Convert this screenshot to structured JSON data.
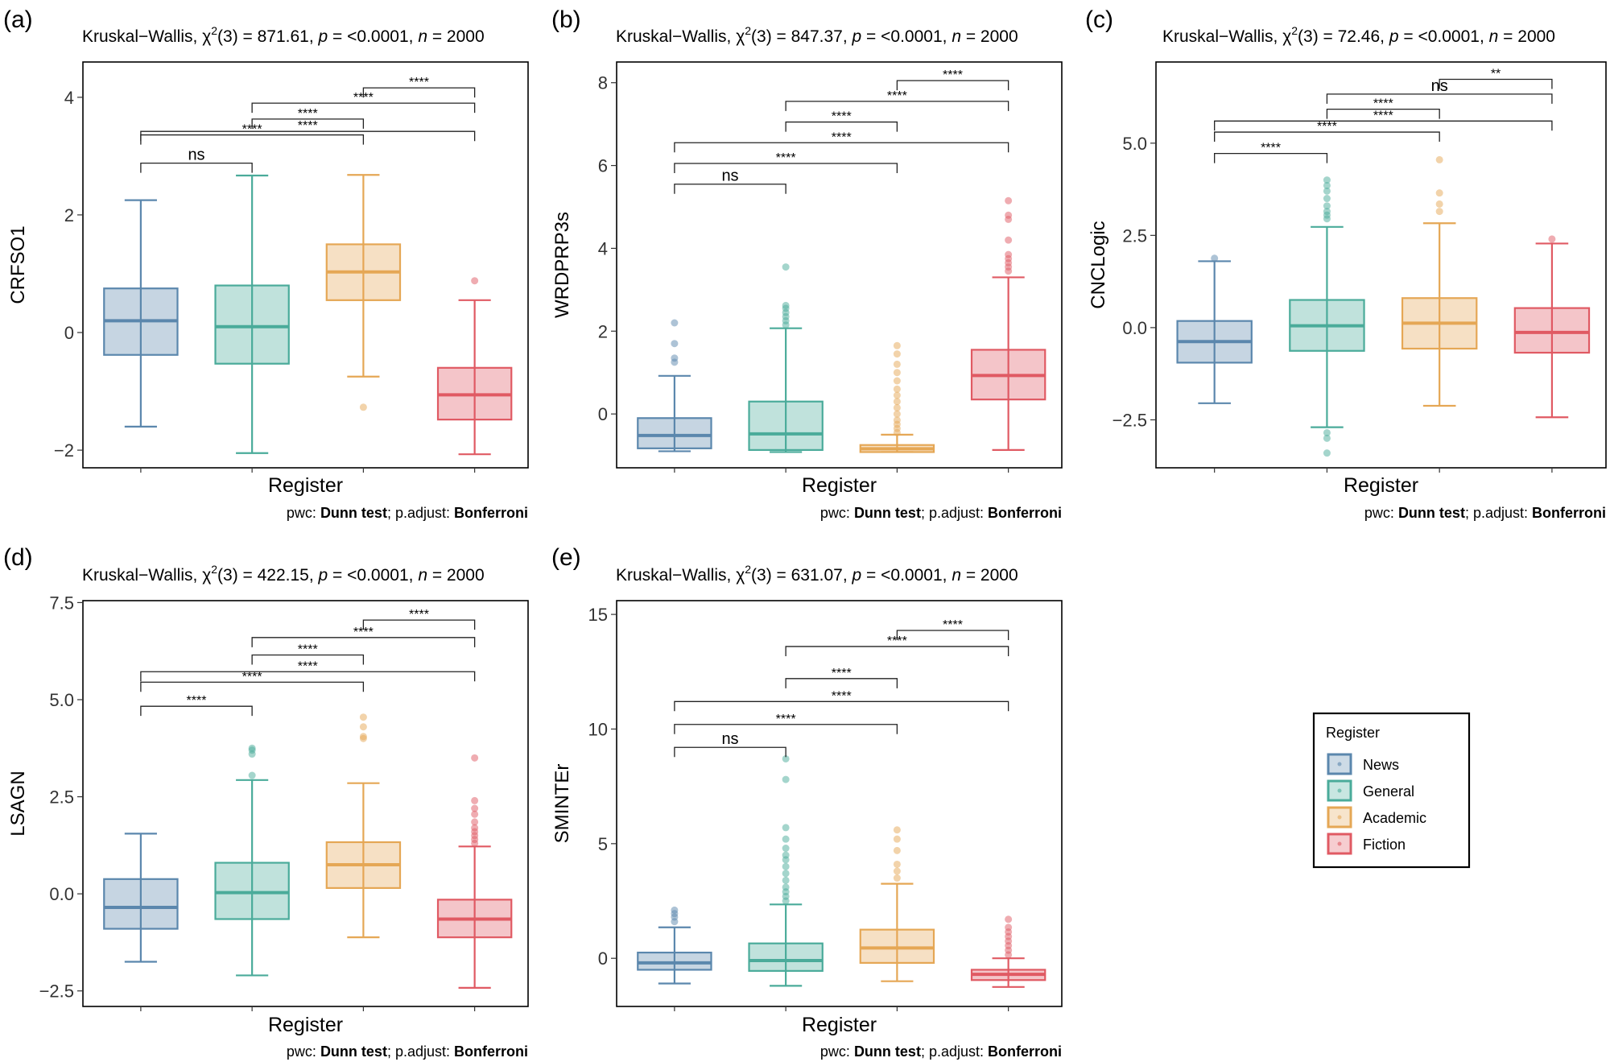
{
  "chart_data": [
    {
      "type": "box",
      "panel_label": "(a)",
      "test_name": "Kruskal−Wallis, ",
      "chi_symbol": "χ",
      "chi_exp": "2",
      "test_stat": "(3) = 871.61, ",
      "p_letter": "p",
      "p_text": " = <0.0001, ",
      "n_letter": "n",
      "n_text": " = 2000",
      "ylabel": "CRFSO1",
      "xlabel": "Register",
      "caption_prefix": "pwc: ",
      "caption_test": "Dunn test",
      "caption_mid": "; p.adjust: ",
      "caption_adjust": "Bonferroni",
      "ylim": [
        -2.3,
        4.6
      ],
      "yticks": [
        -2,
        0,
        2,
        4
      ],
      "yticklabels": [
        "−2",
        "0",
        "2",
        "4"
      ],
      "boxes": [
        {
          "category": "News",
          "whisker_low": -1.6,
          "q1": -0.38,
          "median": 0.2,
          "q3": 0.75,
          "whisker_high": 2.25,
          "outliers": []
        },
        {
          "category": "General",
          "whisker_low": -2.05,
          "q1": -0.53,
          "median": 0.1,
          "q3": 0.8,
          "whisker_high": 2.67,
          "outliers": []
        },
        {
          "category": "Academic",
          "whisker_low": -0.75,
          "q1": 0.55,
          "median": 1.03,
          "q3": 1.5,
          "whisker_high": 2.68,
          "outliers": [
            -1.27
          ]
        },
        {
          "category": "Fiction",
          "whisker_low": -2.07,
          "q1": -1.48,
          "median": -1.06,
          "q3": -0.6,
          "whisker_high": 0.55,
          "outliers": [
            0.88
          ]
        }
      ],
      "comparisons": [
        {
          "groups": [
            "News",
            "General"
          ],
          "label": "ns",
          "bracket_y": 2.88
        },
        {
          "groups": [
            "News",
            "Academic"
          ],
          "label": "****",
          "bracket_y": 3.36
        },
        {
          "groups": [
            "News",
            "Fiction"
          ],
          "label": "****",
          "bracket_y": 3.42
        },
        {
          "groups": [
            "General",
            "Academic"
          ],
          "label": "****",
          "bracket_y": 3.63
        },
        {
          "groups": [
            "General",
            "Fiction"
          ],
          "label": "****",
          "bracket_y": 3.9
        },
        {
          "groups": [
            "Academic",
            "Fiction"
          ],
          "label": "****",
          "bracket_y": 4.16
        }
      ]
    },
    {
      "type": "box",
      "panel_label": "(b)",
      "test_name": "Kruskal−Wallis, ",
      "chi_symbol": "χ",
      "chi_exp": "2",
      "test_stat": "(3) = 847.37, ",
      "p_letter": "p",
      "p_text": " = <0.0001, ",
      "n_letter": "n",
      "n_text": " = 2000",
      "ylabel": "WRDPRP3s",
      "xlabel": "Register",
      "caption_prefix": "pwc: ",
      "caption_test": "Dunn test",
      "caption_mid": "; p.adjust: ",
      "caption_adjust": "Bonferroni",
      "ylim": [
        -1.3,
        8.5
      ],
      "yticks": [
        0,
        2,
        4,
        6,
        8
      ],
      "yticklabels": [
        "0",
        "2",
        "4",
        "6",
        "8"
      ],
      "boxes": [
        {
          "category": "News",
          "whisker_low": -0.9,
          "q1": -0.83,
          "median": -0.52,
          "q3": -0.1,
          "whisker_high": 0.92,
          "outliers": [
            1.25,
            1.35,
            1.7,
            2.2
          ]
        },
        {
          "category": "General",
          "whisker_low": -0.92,
          "q1": -0.87,
          "median": -0.48,
          "q3": 0.3,
          "whisker_high": 2.07,
          "outliers": [
            2.15,
            2.25,
            2.35,
            2.45,
            2.55,
            2.62,
            3.55
          ]
        },
        {
          "category": "Academic",
          "whisker_low": -0.92,
          "q1": -0.92,
          "median": -0.84,
          "q3": -0.75,
          "whisker_high": -0.5,
          "outliers": [
            -0.45,
            -0.35,
            -0.25,
            -0.15,
            0,
            0.15,
            0.3,
            0.45,
            0.6,
            0.8,
            1.0,
            1.2,
            1.45,
            1.65
          ]
        },
        {
          "category": "Fiction",
          "whisker_low": -0.87,
          "q1": 0.35,
          "median": 0.93,
          "q3": 1.55,
          "whisker_high": 3.3,
          "outliers": [
            3.45,
            3.55,
            3.65,
            3.75,
            3.85,
            4.2,
            4.7,
            4.8,
            5.15
          ]
        }
      ],
      "comparisons": [
        {
          "groups": [
            "News",
            "General"
          ],
          "label": "ns",
          "bracket_y": 5.55
        },
        {
          "groups": [
            "News",
            "Academic"
          ],
          "label": "****",
          "bracket_y": 6.05
        },
        {
          "groups": [
            "News",
            "Fiction"
          ],
          "label": "****",
          "bracket_y": 6.55
        },
        {
          "groups": [
            "General",
            "Academic"
          ],
          "label": "****",
          "bracket_y": 7.05
        },
        {
          "groups": [
            "General",
            "Fiction"
          ],
          "label": "****",
          "bracket_y": 7.55
        },
        {
          "groups": [
            "Academic",
            "Fiction"
          ],
          "label": "****",
          "bracket_y": 8.05
        }
      ]
    },
    {
      "type": "box",
      "panel_label": "(c)",
      "test_name": "Kruskal−Wallis, ",
      "chi_symbol": "χ",
      "chi_exp": "2",
      "test_stat": "(3) = 72.46, ",
      "p_letter": "p",
      "p_text": " = <0.0001, ",
      "n_letter": "n",
      "n_text": " = 2000",
      "ylabel": "CNCLogic",
      "xlabel": "Register",
      "caption_prefix": "pwc: ",
      "caption_test": "Dunn test",
      "caption_mid": "; p.adjust: ",
      "caption_adjust": "Bonferroni",
      "ylim": [
        -3.8,
        7.2
      ],
      "yticks": [
        -2.5,
        0,
        2.5,
        5
      ],
      "yticklabels": [
        "−2.5",
        "0.0",
        "2.5",
        "5.0"
      ],
      "boxes": [
        {
          "category": "News",
          "whisker_low": -2.05,
          "q1": -0.95,
          "median": -0.38,
          "q3": 0.18,
          "whisker_high": 1.8,
          "outliers": [
            1.88
          ]
        },
        {
          "category": "General",
          "whisker_low": -2.7,
          "q1": -0.63,
          "median": 0.05,
          "q3": 0.75,
          "whisker_high": 2.73,
          "outliers": [
            -2.85,
            -3.0,
            -3.4,
            2.95,
            3.05,
            3.15,
            3.3,
            3.5,
            3.7,
            3.85,
            4.0
          ]
        },
        {
          "category": "Academic",
          "whisker_low": -2.12,
          "q1": -0.57,
          "median": 0.12,
          "q3": 0.8,
          "whisker_high": 2.83,
          "outliers": [
            3.15,
            3.35,
            3.65,
            4.55
          ]
        },
        {
          "category": "Fiction",
          "whisker_low": -2.43,
          "q1": -0.68,
          "median": -0.13,
          "q3": 0.53,
          "whisker_high": 2.28,
          "outliers": [
            2.4
          ]
        }
      ],
      "comparisons": [
        {
          "groups": [
            "News",
            "General"
          ],
          "label": "****",
          "bracket_y": 4.72
        },
        {
          "groups": [
            "News",
            "Academic"
          ],
          "label": "****",
          "bracket_y": 5.3
        },
        {
          "groups": [
            "News",
            "Fiction"
          ],
          "label": "****",
          "bracket_y": 5.6
        },
        {
          "groups": [
            "General",
            "Academic"
          ],
          "label": "****",
          "bracket_y": 5.92
        },
        {
          "groups": [
            "General",
            "Fiction"
          ],
          "label": "ns",
          "bracket_y": 6.33
        },
        {
          "groups": [
            "Academic",
            "Fiction"
          ],
          "label": "**",
          "bracket_y": 6.73
        }
      ]
    },
    {
      "type": "box",
      "panel_label": "(d)",
      "test_name": "Kruskal−Wallis, ",
      "chi_symbol": "χ",
      "chi_exp": "2",
      "test_stat": "(3) = 422.15, ",
      "p_letter": "p",
      "p_text": " = <0.0001, ",
      "n_letter": "n",
      "n_text": " = 2000",
      "ylabel": "LSAGN",
      "xlabel": "Register",
      "caption_prefix": "pwc: ",
      "caption_test": "Dunn test",
      "caption_mid": "; p.adjust: ",
      "caption_adjust": "Bonferroni",
      "ylim": [
        -2.9,
        7.55
      ],
      "yticks": [
        -2.5,
        0,
        2.5,
        5,
        7.5
      ],
      "yticklabels": [
        "−2.5",
        "0.0",
        "2.5",
        "5.0",
        "7.5"
      ],
      "boxes": [
        {
          "category": "News",
          "whisker_low": -1.75,
          "q1": -0.9,
          "median": -0.35,
          "q3": 0.38,
          "whisker_high": 1.55,
          "outliers": []
        },
        {
          "category": "General",
          "whisker_low": -2.1,
          "q1": -0.65,
          "median": 0.03,
          "q3": 0.8,
          "whisker_high": 2.93,
          "outliers": [
            3.05,
            3.6,
            3.7,
            3.75
          ]
        },
        {
          "category": "Academic",
          "whisker_low": -1.12,
          "q1": 0.15,
          "median": 0.75,
          "q3": 1.33,
          "whisker_high": 2.85,
          "outliers": [
            4.0,
            4.05,
            4.3,
            4.55
          ]
        },
        {
          "category": "Fiction",
          "whisker_low": -2.42,
          "q1": -1.12,
          "median": -0.65,
          "q3": -0.15,
          "whisker_high": 1.22,
          "outliers": [
            1.3,
            1.4,
            1.5,
            1.6,
            1.7,
            1.85,
            2.05,
            2.2,
            2.4,
            3.5
          ]
        }
      ],
      "comparisons": [
        {
          "groups": [
            "News",
            "General"
          ],
          "label": "****",
          "bracket_y": 4.83
        },
        {
          "groups": [
            "News",
            "Academic"
          ],
          "label": "****",
          "bracket_y": 5.45
        },
        {
          "groups": [
            "News",
            "Fiction"
          ],
          "label": "****",
          "bracket_y": 5.72
        },
        {
          "groups": [
            "General",
            "Academic"
          ],
          "label": "****",
          "bracket_y": 6.15
        },
        {
          "groups": [
            "General",
            "Fiction"
          ],
          "label": "****",
          "bracket_y": 6.6
        },
        {
          "groups": [
            "Academic",
            "Fiction"
          ],
          "label": "****",
          "bracket_y": 7.05
        }
      ]
    },
    {
      "type": "box",
      "panel_label": "(e)",
      "test_name": "Kruskal−Wallis, ",
      "chi_symbol": "χ",
      "chi_exp": "2",
      "test_stat": "(3) = 631.07, ",
      "p_letter": "p",
      "p_text": " = <0.0001, ",
      "n_letter": "n",
      "n_text": " = 2000",
      "ylabel": "SMINTEr",
      "xlabel": "Register",
      "caption_prefix": "pwc: ",
      "caption_test": "Dunn test",
      "caption_mid": "; p.adjust: ",
      "caption_adjust": "Bonferroni",
      "ylim": [
        -2.1,
        15.6
      ],
      "yticks": [
        0,
        5,
        10,
        15
      ],
      "yticklabels": [
        "0",
        "5",
        "10",
        "15"
      ],
      "boxes": [
        {
          "category": "News",
          "whisker_low": -1.1,
          "q1": -0.5,
          "median": -0.2,
          "q3": 0.25,
          "whisker_high": 1.35,
          "outliers": [
            1.6,
            1.8,
            1.95,
            2.1
          ]
        },
        {
          "category": "General",
          "whisker_low": -1.2,
          "q1": -0.55,
          "median": -0.1,
          "q3": 0.65,
          "whisker_high": 2.35,
          "outliers": [
            2.5,
            2.7,
            2.9,
            3.1,
            3.4,
            3.7,
            4.0,
            4.3,
            4.5,
            4.8,
            5.2,
            5.7,
            7.8,
            8.7
          ]
        },
        {
          "category": "Academic",
          "whisker_low": -1.0,
          "q1": -0.2,
          "median": 0.45,
          "q3": 1.25,
          "whisker_high": 3.25,
          "outliers": [
            3.5,
            3.8,
            4.1,
            4.7,
            5.2,
            5.6
          ]
        },
        {
          "category": "Fiction",
          "whisker_low": -1.25,
          "q1": -0.95,
          "median": -0.7,
          "q3": -0.5,
          "whisker_high": 0,
          "outliers": [
            0.15,
            0.35,
            0.55,
            0.75,
            0.95,
            1.15,
            1.35,
            1.7
          ]
        }
      ],
      "comparisons": [
        {
          "groups": [
            "News",
            "General"
          ],
          "label": "ns",
          "bracket_y": 9.2
        },
        {
          "groups": [
            "News",
            "Academic"
          ],
          "label": "****",
          "bracket_y": 10.2
        },
        {
          "groups": [
            "News",
            "Fiction"
          ],
          "label": "****",
          "bracket_y": 11.2
        },
        {
          "groups": [
            "General",
            "Academic"
          ],
          "label": "****",
          "bracket_y": 12.2
        },
        {
          "groups": [
            "General",
            "Fiction"
          ],
          "label": "****",
          "bracket_y": 13.6
        },
        {
          "groups": [
            "Academic",
            "Fiction"
          ],
          "label": "****",
          "bracket_y": 14.3
        }
      ]
    }
  ],
  "legend": {
    "title": "Register",
    "items": [
      "News",
      "General",
      "Academic",
      "Fiction"
    ]
  },
  "colors": {
    "News": "#5b87ad",
    "General": "#4aab9a",
    "Academic": "#e5a755",
    "Fiction": "#e05a63"
  }
}
